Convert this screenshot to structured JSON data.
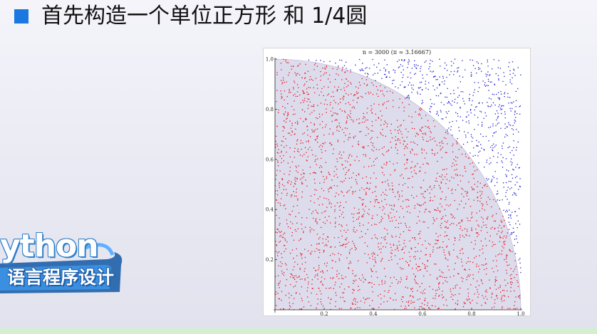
{
  "slide": {
    "title": "首先构造一个单位正方形 和 1/4圆",
    "bullet_color": "#1a78e0",
    "logo": {
      "word": "ython",
      "subtitle": "语言程序设计",
      "color": "#2f7fc9"
    }
  },
  "chart_data": {
    "type": "scatter",
    "title": "n = 3000 (π ≈ 3.16667)",
    "xlabel": "",
    "ylabel": "",
    "xlim": [
      0,
      1
    ],
    "ylim": [
      0,
      1
    ],
    "x_ticks": [
      "0.2",
      "0.4",
      "0.6",
      "0.8",
      "1.0"
    ],
    "y_ticks": [
      "0.2",
      "0.4",
      "0.6",
      "0.8",
      "1.0"
    ],
    "n": 3000,
    "pi_estimate": 3.16667,
    "inside_count": 2375,
    "outside_count": 625,
    "grid": false,
    "series": [
      {
        "color": "#e8141c"
      },
      {
        "color": "#1c1ccc"
      }
    ],
    "quarter_circle_fill": "#dcdcec"
  }
}
